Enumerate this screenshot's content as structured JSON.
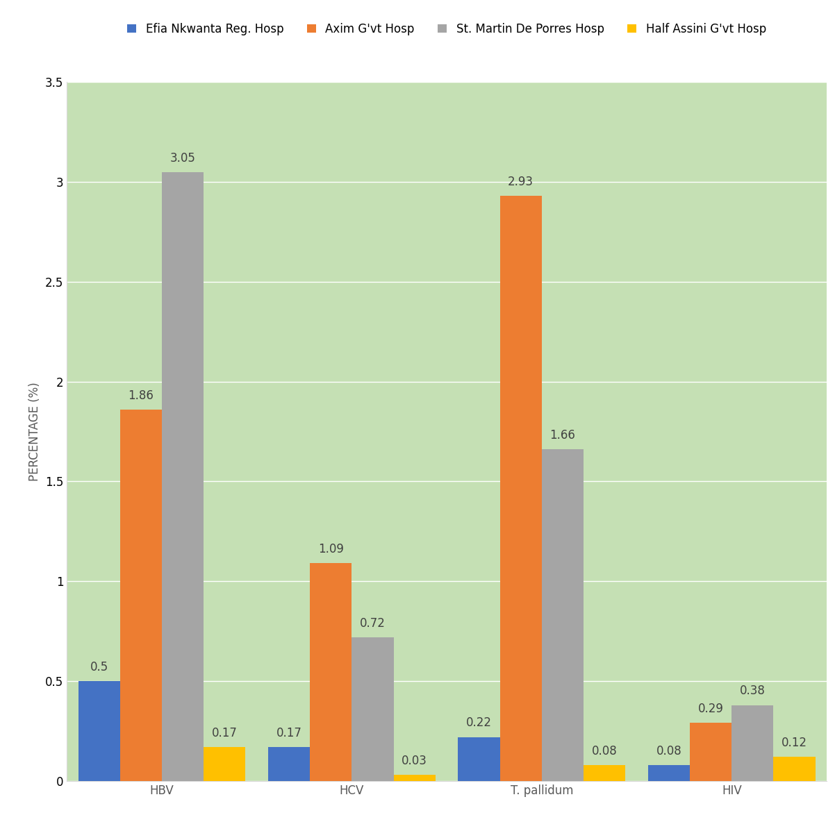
{
  "chart_data": {
    "type": "bar",
    "y_label": "PERCENTAGE (%)",
    "categories": [
      "HBV",
      "HCV",
      "T. pallidum",
      "HIV"
    ],
    "series": [
      {
        "name": "Efia Nkwanta Reg. Hosp",
        "color": "#4472c4",
        "values": [
          0.5,
          0.17,
          0.22,
          0.08
        ]
      },
      {
        "name": "Axim G'vt Hosp",
        "color": "#ed7d31",
        "values": [
          1.86,
          1.09,
          2.93,
          0.29
        ]
      },
      {
        "name": "St. Martin De Porres Hosp",
        "color": "#a5a5a5",
        "values": [
          3.05,
          0.72,
          1.66,
          0.38
        ]
      },
      {
        "name": "Half Assini G'vt Hosp",
        "color": "#ffc000",
        "values": [
          0.17,
          0.03,
          0.08,
          0.12
        ]
      }
    ],
    "ylim": [
      0,
      3.5
    ],
    "yticks": [
      0,
      0.5,
      1,
      1.5,
      2,
      2.5,
      3,
      3.5
    ],
    "grid": true,
    "legend": "upper center",
    "data_labels": true
  }
}
